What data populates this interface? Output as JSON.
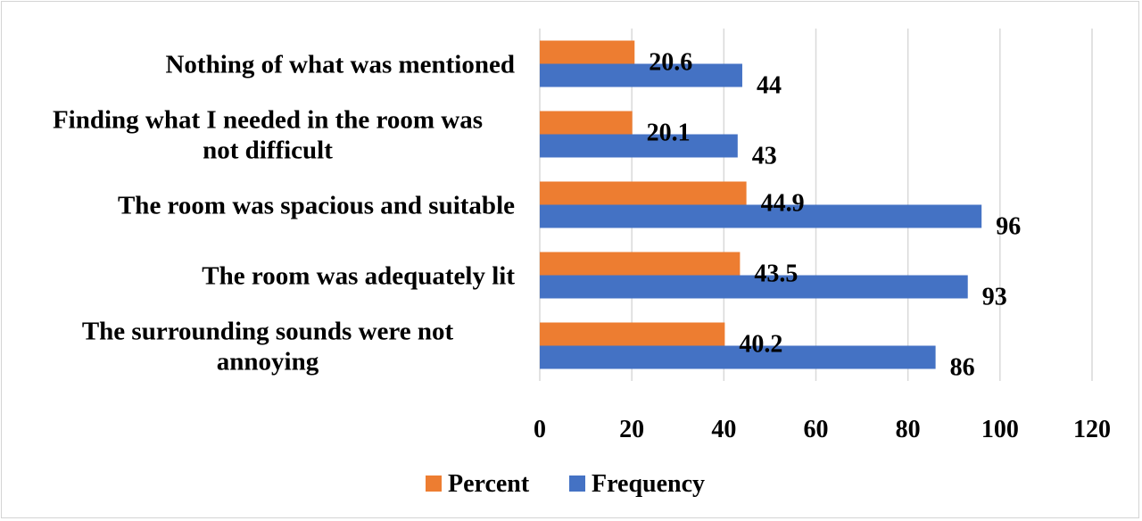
{
  "chart_data": {
    "type": "bar",
    "orientation": "horizontal",
    "categories": [
      [
        "Nothing of what was mentioned"
      ],
      [
        "Finding what I needed in the room was",
        "not difficult"
      ],
      [
        "The room was spacious and suitable"
      ],
      [
        "The room was adequately lit"
      ],
      [
        "The surrounding sounds were not",
        "annoying"
      ]
    ],
    "series": [
      {
        "name": "Percent",
        "color": "#ED7D31",
        "values": [
          20.6,
          20.1,
          44.9,
          43.5,
          40.2
        ],
        "labels": [
          "20.6",
          "20.1",
          "44.9",
          "43.5",
          "40.2"
        ]
      },
      {
        "name": "Frequency",
        "color": "#4472C4",
        "values": [
          44,
          43,
          96,
          93,
          86
        ],
        "labels": [
          "44",
          "43",
          "96",
          "93",
          "86"
        ]
      }
    ],
    "xlim": [
      0,
      120
    ],
    "xticks": [
      0,
      20,
      40,
      60,
      80,
      100,
      120
    ],
    "grid": "vertical",
    "legend": "bottom"
  }
}
